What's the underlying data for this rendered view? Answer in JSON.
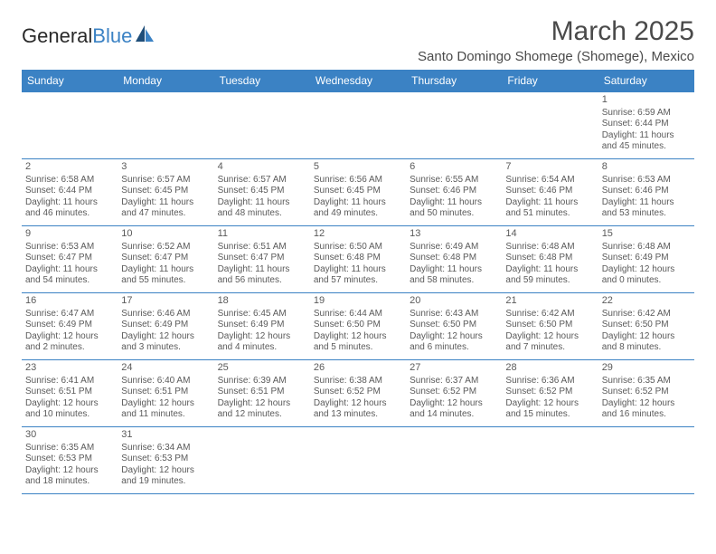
{
  "logo": {
    "text1": "General",
    "text2": "Blue"
  },
  "title": "March 2025",
  "location": "Santo Domingo Shomege (Shomege), Mexico",
  "colors": {
    "header_bg": "#3b82c4",
    "border": "#3b82c4",
    "text": "#5a5a5a"
  },
  "daynames": [
    "Sunday",
    "Monday",
    "Tuesday",
    "Wednesday",
    "Thursday",
    "Friday",
    "Saturday"
  ],
  "weeks": [
    [
      null,
      null,
      null,
      null,
      null,
      null,
      {
        "n": "1",
        "sr": "Sunrise: 6:59 AM",
        "ss": "Sunset: 6:44 PM",
        "dl": "Daylight: 11 hours and 45 minutes."
      }
    ],
    [
      {
        "n": "2",
        "sr": "Sunrise: 6:58 AM",
        "ss": "Sunset: 6:44 PM",
        "dl": "Daylight: 11 hours and 46 minutes."
      },
      {
        "n": "3",
        "sr": "Sunrise: 6:57 AM",
        "ss": "Sunset: 6:45 PM",
        "dl": "Daylight: 11 hours and 47 minutes."
      },
      {
        "n": "4",
        "sr": "Sunrise: 6:57 AM",
        "ss": "Sunset: 6:45 PM",
        "dl": "Daylight: 11 hours and 48 minutes."
      },
      {
        "n": "5",
        "sr": "Sunrise: 6:56 AM",
        "ss": "Sunset: 6:45 PM",
        "dl": "Daylight: 11 hours and 49 minutes."
      },
      {
        "n": "6",
        "sr": "Sunrise: 6:55 AM",
        "ss": "Sunset: 6:46 PM",
        "dl": "Daylight: 11 hours and 50 minutes."
      },
      {
        "n": "7",
        "sr": "Sunrise: 6:54 AM",
        "ss": "Sunset: 6:46 PM",
        "dl": "Daylight: 11 hours and 51 minutes."
      },
      {
        "n": "8",
        "sr": "Sunrise: 6:53 AM",
        "ss": "Sunset: 6:46 PM",
        "dl": "Daylight: 11 hours and 53 minutes."
      }
    ],
    [
      {
        "n": "9",
        "sr": "Sunrise: 6:53 AM",
        "ss": "Sunset: 6:47 PM",
        "dl": "Daylight: 11 hours and 54 minutes."
      },
      {
        "n": "10",
        "sr": "Sunrise: 6:52 AM",
        "ss": "Sunset: 6:47 PM",
        "dl": "Daylight: 11 hours and 55 minutes."
      },
      {
        "n": "11",
        "sr": "Sunrise: 6:51 AM",
        "ss": "Sunset: 6:47 PM",
        "dl": "Daylight: 11 hours and 56 minutes."
      },
      {
        "n": "12",
        "sr": "Sunrise: 6:50 AM",
        "ss": "Sunset: 6:48 PM",
        "dl": "Daylight: 11 hours and 57 minutes."
      },
      {
        "n": "13",
        "sr": "Sunrise: 6:49 AM",
        "ss": "Sunset: 6:48 PM",
        "dl": "Daylight: 11 hours and 58 minutes."
      },
      {
        "n": "14",
        "sr": "Sunrise: 6:48 AM",
        "ss": "Sunset: 6:48 PM",
        "dl": "Daylight: 11 hours and 59 minutes."
      },
      {
        "n": "15",
        "sr": "Sunrise: 6:48 AM",
        "ss": "Sunset: 6:49 PM",
        "dl": "Daylight: 12 hours and 0 minutes."
      }
    ],
    [
      {
        "n": "16",
        "sr": "Sunrise: 6:47 AM",
        "ss": "Sunset: 6:49 PM",
        "dl": "Daylight: 12 hours and 2 minutes."
      },
      {
        "n": "17",
        "sr": "Sunrise: 6:46 AM",
        "ss": "Sunset: 6:49 PM",
        "dl": "Daylight: 12 hours and 3 minutes."
      },
      {
        "n": "18",
        "sr": "Sunrise: 6:45 AM",
        "ss": "Sunset: 6:49 PM",
        "dl": "Daylight: 12 hours and 4 minutes."
      },
      {
        "n": "19",
        "sr": "Sunrise: 6:44 AM",
        "ss": "Sunset: 6:50 PM",
        "dl": "Daylight: 12 hours and 5 minutes."
      },
      {
        "n": "20",
        "sr": "Sunrise: 6:43 AM",
        "ss": "Sunset: 6:50 PM",
        "dl": "Daylight: 12 hours and 6 minutes."
      },
      {
        "n": "21",
        "sr": "Sunrise: 6:42 AM",
        "ss": "Sunset: 6:50 PM",
        "dl": "Daylight: 12 hours and 7 minutes."
      },
      {
        "n": "22",
        "sr": "Sunrise: 6:42 AM",
        "ss": "Sunset: 6:50 PM",
        "dl": "Daylight: 12 hours and 8 minutes."
      }
    ],
    [
      {
        "n": "23",
        "sr": "Sunrise: 6:41 AM",
        "ss": "Sunset: 6:51 PM",
        "dl": "Daylight: 12 hours and 10 minutes."
      },
      {
        "n": "24",
        "sr": "Sunrise: 6:40 AM",
        "ss": "Sunset: 6:51 PM",
        "dl": "Daylight: 12 hours and 11 minutes."
      },
      {
        "n": "25",
        "sr": "Sunrise: 6:39 AM",
        "ss": "Sunset: 6:51 PM",
        "dl": "Daylight: 12 hours and 12 minutes."
      },
      {
        "n": "26",
        "sr": "Sunrise: 6:38 AM",
        "ss": "Sunset: 6:52 PM",
        "dl": "Daylight: 12 hours and 13 minutes."
      },
      {
        "n": "27",
        "sr": "Sunrise: 6:37 AM",
        "ss": "Sunset: 6:52 PM",
        "dl": "Daylight: 12 hours and 14 minutes."
      },
      {
        "n": "28",
        "sr": "Sunrise: 6:36 AM",
        "ss": "Sunset: 6:52 PM",
        "dl": "Daylight: 12 hours and 15 minutes."
      },
      {
        "n": "29",
        "sr": "Sunrise: 6:35 AM",
        "ss": "Sunset: 6:52 PM",
        "dl": "Daylight: 12 hours and 16 minutes."
      }
    ],
    [
      {
        "n": "30",
        "sr": "Sunrise: 6:35 AM",
        "ss": "Sunset: 6:53 PM",
        "dl": "Daylight: 12 hours and 18 minutes."
      },
      {
        "n": "31",
        "sr": "Sunrise: 6:34 AM",
        "ss": "Sunset: 6:53 PM",
        "dl": "Daylight: 12 hours and 19 minutes."
      },
      null,
      null,
      null,
      null,
      null
    ]
  ]
}
